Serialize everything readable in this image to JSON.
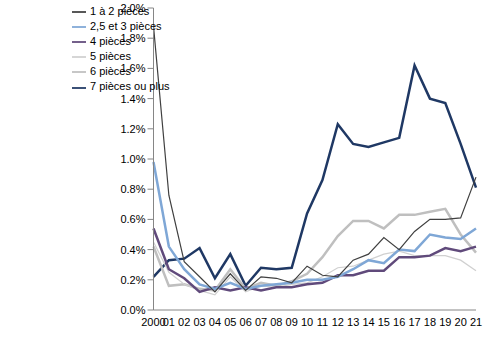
{
  "chart_data": {
    "type": "line",
    "categories": [
      "2000",
      "01",
      "02",
      "03",
      "04",
      "05",
      "06",
      "07",
      "08",
      "09",
      "10",
      "11",
      "12",
      "13",
      "14",
      "15",
      "16",
      "17",
      "18",
      "19",
      "20",
      "21"
    ],
    "series": [
      {
        "name": "7 pièces ou plus",
        "color": "#1f3864",
        "values": [
          0.22,
          0.33,
          0.34,
          0.41,
          0.21,
          0.37,
          0.16,
          0.28,
          0.27,
          0.28,
          0.64,
          0.86,
          1.23,
          1.1,
          1.08,
          1.11,
          1.14,
          1.62,
          1.4,
          1.37,
          1.1,
          0.81
        ]
      },
      {
        "name": "6 pièces",
        "color": "#bfbfbf",
        "values": [
          0.42,
          0.16,
          0.17,
          0.14,
          0.13,
          0.27,
          0.14,
          0.18,
          0.16,
          0.19,
          0.24,
          0.35,
          0.49,
          0.59,
          0.59,
          0.54,
          0.63,
          0.63,
          0.65,
          0.67,
          0.5,
          0.38
        ]
      },
      {
        "name": "5 pièces",
        "color": "#d0d0d0",
        "values": [
          0.45,
          0.25,
          0.17,
          0.13,
          0.1,
          0.22,
          0.12,
          0.16,
          0.15,
          0.17,
          0.18,
          0.22,
          0.28,
          0.29,
          0.33,
          0.37,
          0.39,
          0.36,
          0.36,
          0.36,
          0.33,
          0.26
        ]
      },
      {
        "name": "4 pièces",
        "color": "#604a7b",
        "values": [
          0.54,
          0.27,
          0.21,
          0.12,
          0.15,
          0.13,
          0.15,
          0.13,
          0.15,
          0.15,
          0.17,
          0.18,
          0.23,
          0.23,
          0.26,
          0.26,
          0.35,
          0.35,
          0.36,
          0.41,
          0.39,
          0.42
        ]
      },
      {
        "name": "2,5 et 3 pièces",
        "color": "#7fa7d6",
        "values": [
          0.98,
          0.42,
          0.27,
          0.17,
          0.14,
          0.18,
          0.14,
          0.16,
          0.17,
          0.18,
          0.2,
          0.2,
          0.22,
          0.27,
          0.33,
          0.31,
          0.4,
          0.39,
          0.5,
          0.48,
          0.47,
          0.54
        ]
      },
      {
        "name": "1 à 2 pièces",
        "color": "#404040",
        "values": [
          1.88,
          0.76,
          0.32,
          0.22,
          0.12,
          0.24,
          0.13,
          0.22,
          0.21,
          0.18,
          0.29,
          0.23,
          0.22,
          0.33,
          0.37,
          0.48,
          0.4,
          0.52,
          0.6,
          0.6,
          0.61,
          0.88
        ]
      }
    ],
    "ylim": [
      0,
      2
    ],
    "yticks": [
      {
        "value": 0,
        "label": "0.0%"
      },
      {
        "value": 0.2,
        "label": "0.2%"
      },
      {
        "value": 0.4,
        "label": "0.4%"
      },
      {
        "value": 0.6,
        "label": "0.6%"
      },
      {
        "value": 0.8,
        "label": "0.8%"
      },
      {
        "value": 1,
        "label": "1.0%"
      },
      {
        "value": 1.2,
        "label": "1.2%"
      },
      {
        "value": 1.4,
        "label": "1.4%"
      },
      {
        "value": 1.6,
        "label": "1.6%"
      },
      {
        "value": 1.8,
        "label": "1.8%"
      },
      {
        "value": 2,
        "label": "2.0%"
      }
    ],
    "grid": false,
    "legend": "top-left"
  }
}
